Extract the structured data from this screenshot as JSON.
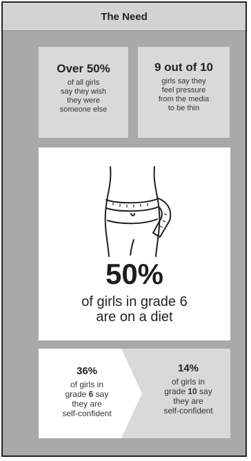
{
  "header": {
    "title": "The Need"
  },
  "cards": {
    "wish": {
      "big": "Over 50%",
      "lines": [
        "of all girls",
        "say they wish",
        "they were",
        "someone else"
      ]
    },
    "media": {
      "big": "9 out of 10",
      "lines": [
        "girls say they",
        "feel pressure",
        "from the media",
        "to be thin"
      ]
    },
    "diet": {
      "icon": "waist-tape-measure-icon",
      "big": "50%",
      "lines": [
        "of girls in grade 6",
        "are on a diet"
      ]
    }
  },
  "confidence": {
    "grade6": {
      "big": "36%",
      "l1": "of girls in",
      "l2_pre": "grade ",
      "l2_bold": "6",
      "l2_post": " say",
      "l3": "they are",
      "l4": "self-confident"
    },
    "grade10": {
      "big": "14%",
      "l1": "of girls in",
      "l2_pre": "grade ",
      "l2_bold": "10",
      "l2_post": " say",
      "l3": "they are",
      "l4": "self-confident"
    }
  },
  "colors": {
    "background": "#a9a9a9",
    "card": "#d9d9d9",
    "white": "#ffffff"
  }
}
